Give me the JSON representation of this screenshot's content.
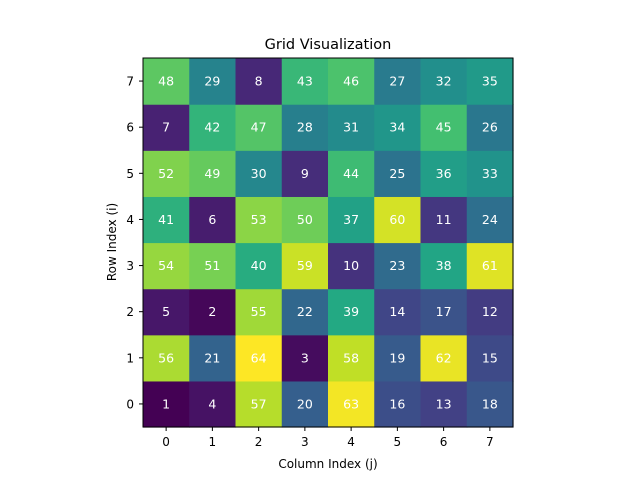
{
  "chart_data": {
    "type": "heatmap",
    "title": "Grid Visualization",
    "xlabel": "Column Index (j)",
    "ylabel": "Row Index (i)",
    "x_ticks": [
      "0",
      "1",
      "2",
      "3",
      "4",
      "5",
      "6",
      "7"
    ],
    "y_ticks": [
      "0",
      "1",
      "2",
      "3",
      "4",
      "5",
      "6",
      "7"
    ],
    "colormap": "viridis",
    "value_range": [
      1,
      64
    ],
    "origin": "lower",
    "grid": false,
    "cell_label_color": "#ffffff",
    "rows": [
      {
        "i": 0,
        "values": [
          1,
          4,
          57,
          20,
          63,
          16,
          13,
          18
        ]
      },
      {
        "i": 1,
        "values": [
          56,
          21,
          64,
          3,
          58,
          19,
          62,
          15
        ]
      },
      {
        "i": 2,
        "values": [
          5,
          2,
          55,
          22,
          39,
          14,
          17,
          12
        ]
      },
      {
        "i": 3,
        "values": [
          54,
          51,
          40,
          59,
          10,
          23,
          38,
          61
        ]
      },
      {
        "i": 4,
        "values": [
          41,
          6,
          53,
          50,
          37,
          60,
          11,
          24
        ]
      },
      {
        "i": 5,
        "values": [
          52,
          49,
          30,
          9,
          44,
          25,
          36,
          33
        ]
      },
      {
        "i": 6,
        "values": [
          7,
          42,
          47,
          28,
          31,
          34,
          45,
          26
        ]
      },
      {
        "i": 7,
        "values": [
          48,
          29,
          8,
          43,
          46,
          27,
          32,
          35
        ]
      }
    ]
  }
}
